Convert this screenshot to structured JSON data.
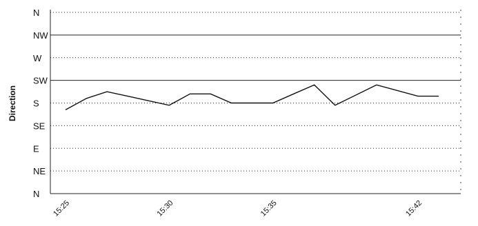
{
  "chart_data": {
    "type": "line",
    "title": "",
    "xlabel": "",
    "ylabel": "Direction",
    "y_categories": [
      "N",
      "NE",
      "E",
      "SE",
      "S",
      "SW",
      "W",
      "NW",
      "N"
    ],
    "x_tick_labels": [
      "15:25",
      "15:30",
      "15:35",
      "15:42"
    ],
    "grid": true,
    "series": [
      {
        "name": "",
        "x": [
          "15:25",
          "15:26",
          "15:27",
          "15:28",
          "15:29",
          "15:30",
          "15:31",
          "15:32",
          "15:33",
          "15:34",
          "15:35",
          "15:36",
          "15:37",
          "15:38",
          "15:40",
          "15:42",
          "15:43"
        ],
        "y": [
          3.7,
          4.2,
          4.5,
          4.3,
          4.1,
          3.9,
          4.4,
          4.4,
          4.0,
          4.0,
          4.0,
          4.4,
          4.8,
          3.9,
          4.8,
          4.3,
          4.3
        ]
      }
    ]
  }
}
